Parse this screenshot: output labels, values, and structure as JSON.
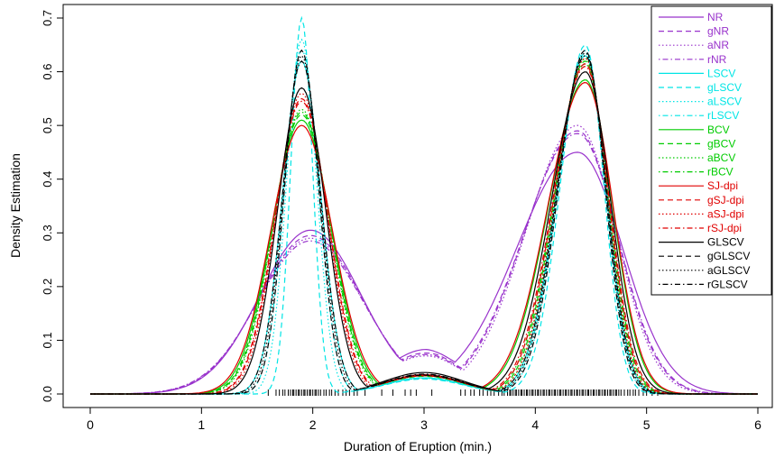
{
  "chart_data": {
    "type": "line",
    "title": "",
    "xlabel": "Duration of Eruption (min.)",
    "ylabel": "Density Estimation",
    "xlim": [
      0,
      6
    ],
    "ylim": [
      0,
      0.72
    ],
    "x_ticks": [
      0,
      1,
      2,
      3,
      4,
      5,
      6
    ],
    "x_tick_labels": [
      "0",
      "1",
      "2",
      "3",
      "4",
      "5",
      "6"
    ],
    "y_ticks": [
      0.0,
      0.1,
      0.2,
      0.3,
      0.4,
      0.5,
      0.6,
      0.7
    ],
    "y_tick_labels": [
      "0.0",
      "0.1",
      "0.2",
      "0.3",
      "0.4",
      "0.5",
      "0.6",
      "0.7"
    ],
    "grid": false,
    "legend_position": "top-right",
    "series": [
      {
        "name": "NR",
        "color": "#9933CC",
        "dash": "solid",
        "peak1": 0.305,
        "peak2": 0.45,
        "trough": 0.08
      },
      {
        "name": "gNR",
        "color": "#9933CC",
        "dash": "dashed",
        "peak1": 0.295,
        "peak2": 0.49,
        "trough": 0.075
      },
      {
        "name": "aNR",
        "color": "#9933CC",
        "dash": "dotted",
        "peak1": 0.29,
        "peak2": 0.5,
        "trough": 0.07
      },
      {
        "name": "rNR",
        "color": "#9933CC",
        "dash": "dotdash",
        "peak1": 0.285,
        "peak2": 0.485,
        "trough": 0.072
      },
      {
        "name": "LSCV",
        "color": "#00E5E5",
        "dash": "solid",
        "peak1": 0.62,
        "peak2": 0.63,
        "trough": 0.03
      },
      {
        "name": "gLSCV",
        "color": "#00E5E5",
        "dash": "dashed",
        "peak1": 0.7,
        "peak2": 0.65,
        "trough": 0.028
      },
      {
        "name": "aLSCV",
        "color": "#00E5E5",
        "dash": "dotted",
        "peak1": 0.66,
        "peak2": 0.64,
        "trough": 0.029
      },
      {
        "name": "rLSCV",
        "color": "#00E5E5",
        "dash": "dotdash",
        "peak1": 0.64,
        "peak2": 0.635,
        "trough": 0.03
      },
      {
        "name": "BCV",
        "color": "#00CC00",
        "dash": "solid",
        "peak1": 0.51,
        "peak2": 0.585,
        "trough": 0.035
      },
      {
        "name": "gBCV",
        "color": "#00CC00",
        "dash": "dashed",
        "peak1": 0.52,
        "peak2": 0.62,
        "trough": 0.033
      },
      {
        "name": "aBCV",
        "color": "#00CC00",
        "dash": "dotted",
        "peak1": 0.53,
        "peak2": 0.625,
        "trough": 0.034
      },
      {
        "name": "rBCV",
        "color": "#00CC00",
        "dash": "dotdash",
        "peak1": 0.525,
        "peak2": 0.615,
        "trough": 0.034
      },
      {
        "name": "SJ-dpi",
        "color": "#E00000",
        "dash": "solid",
        "peak1": 0.5,
        "peak2": 0.58,
        "trough": 0.036
      },
      {
        "name": "gSJ-dpi",
        "color": "#E00000",
        "dash": "dashed",
        "peak1": 0.55,
        "peak2": 0.615,
        "trough": 0.034
      },
      {
        "name": "aSJ-dpi",
        "color": "#E00000",
        "dash": "dotted",
        "peak1": 0.56,
        "peak2": 0.625,
        "trough": 0.034
      },
      {
        "name": "rSJ-dpi",
        "color": "#E00000",
        "dash": "dotdash",
        "peak1": 0.545,
        "peak2": 0.61,
        "trough": 0.035
      },
      {
        "name": "GLSCV",
        "color": "#000000",
        "dash": "solid",
        "peak1": 0.57,
        "peak2": 0.6,
        "trough": 0.04
      },
      {
        "name": "gGLSCV",
        "color": "#000000",
        "dash": "dashed",
        "peak1": 0.64,
        "peak2": 0.64,
        "trough": 0.035
      },
      {
        "name": "aGLSCV",
        "color": "#000000",
        "dash": "dotted",
        "peak1": 0.63,
        "peak2": 0.635,
        "trough": 0.036
      },
      {
        "name": "rGLSCV",
        "color": "#000000",
        "dash": "dotdash",
        "peak1": 0.62,
        "peak2": 0.63,
        "trough": 0.037
      }
    ],
    "rug": [
      1.6,
      1.67,
      1.7,
      1.73,
      1.75,
      1.78,
      1.8,
      1.82,
      1.83,
      1.85,
      1.87,
      1.88,
      1.9,
      1.92,
      1.93,
      1.95,
      1.97,
      1.98,
      2.0,
      2.02,
      2.03,
      2.05,
      2.07,
      2.1,
      2.12,
      2.15,
      2.17,
      2.2,
      2.23,
      2.27,
      2.3,
      2.33,
      2.37,
      2.4,
      2.47,
      2.62,
      2.72,
      2.83,
      2.88,
      2.93,
      3.07,
      3.33,
      3.37,
      3.42,
      3.45,
      3.5,
      3.53,
      3.57,
      3.6,
      3.63,
      3.67,
      3.7,
      3.72,
      3.75,
      3.77,
      3.78,
      3.8,
      3.82,
      3.83,
      3.85,
      3.87,
      3.88,
      3.9,
      3.92,
      3.93,
      3.95,
      3.97,
      3.98,
      4.0,
      4.02,
      4.03,
      4.05,
      4.07,
      4.08,
      4.1,
      4.12,
      4.13,
      4.15,
      4.17,
      4.18,
      4.2,
      4.22,
      4.23,
      4.25,
      4.27,
      4.28,
      4.3,
      4.32,
      4.33,
      4.35,
      4.37,
      4.38,
      4.4,
      4.42,
      4.43,
      4.45,
      4.47,
      4.48,
      4.5,
      4.52,
      4.53,
      4.55,
      4.57,
      4.58,
      4.6,
      4.62,
      4.63,
      4.65,
      4.67,
      4.68,
      4.7,
      4.72,
      4.73,
      4.75,
      4.77,
      4.8,
      4.83,
      4.85,
      4.88,
      4.9,
      4.93,
      4.97,
      5.0,
      5.05,
      5.1
    ]
  }
}
